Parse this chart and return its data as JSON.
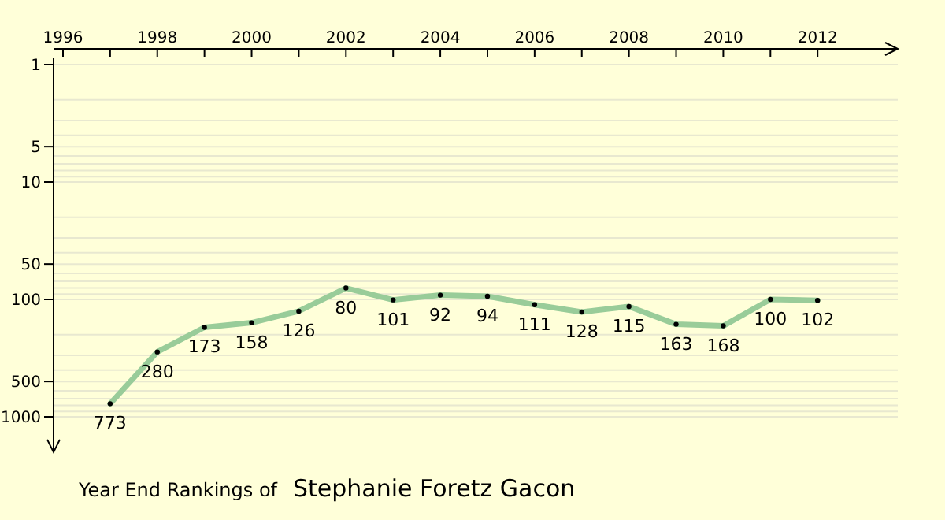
{
  "chart_data": {
    "type": "line",
    "title": "Year End Rankings of",
    "subtitle": "Stephanie Foretz Gacon",
    "x": [
      1997,
      1998,
      1999,
      2000,
      2001,
      2002,
      2003,
      2004,
      2005,
      2006,
      2007,
      2008,
      2009,
      2010,
      2011,
      2012
    ],
    "series": [
      {
        "color": "#99cc99",
        "values": [
          773,
          280,
          173,
          158,
          126,
          80,
          101,
          92,
          94,
          111,
          128,
          115,
          163,
          168,
          100,
          102
        ]
      }
    ],
    "xlim": [
      1995.8,
      2013.7
    ],
    "xticks": [
      1996,
      {
        "value": 1997,
        "label": null
      },
      1998,
      {
        "value": 1999,
        "label": null
      },
      2000,
      {
        "value": 2001,
        "label": null
      },
      2002,
      {
        "value": 2003,
        "label": null
      },
      2004,
      {
        "value": 2005,
        "label": null
      },
      2006,
      {
        "value": 2007,
        "label": null
      },
      2008,
      {
        "value": 2009,
        "label": null
      },
      2010,
      {
        "value": 2011,
        "label": null
      },
      2012
    ],
    "ylim": [
      2000,
      1
    ],
    "yticks": [
      1,
      {
        "value": 2,
        "label": null
      },
      {
        "value": 3,
        "label": null
      },
      {
        "value": 4,
        "label": null
      },
      5,
      {
        "value": 6,
        "label": null
      },
      {
        "value": 7,
        "label": null
      },
      {
        "value": 8,
        "label": null
      },
      {
        "value": 9,
        "label": null
      },
      10,
      {
        "value": 20,
        "label": null
      },
      {
        "value": 30,
        "label": null
      },
      {
        "value": 40,
        "label": null
      },
      50,
      {
        "value": 60,
        "label": null
      },
      {
        "value": 70,
        "label": null
      },
      {
        "value": 80,
        "label": null
      },
      {
        "value": 90,
        "label": null
      },
      100,
      {
        "value": 200,
        "label": null
      },
      {
        "value": 300,
        "label": null
      },
      {
        "value": 400,
        "label": null
      },
      500,
      {
        "value": 600,
        "label": null
      },
      {
        "value": 700,
        "label": null
      },
      {
        "value": 800,
        "label": null
      },
      {
        "value": 900,
        "label": null
      },
      1000
    ],
    "log": true,
    "grid": "y",
    "marker": "circle",
    "line_style": "solid",
    "data_labels": true
  }
}
